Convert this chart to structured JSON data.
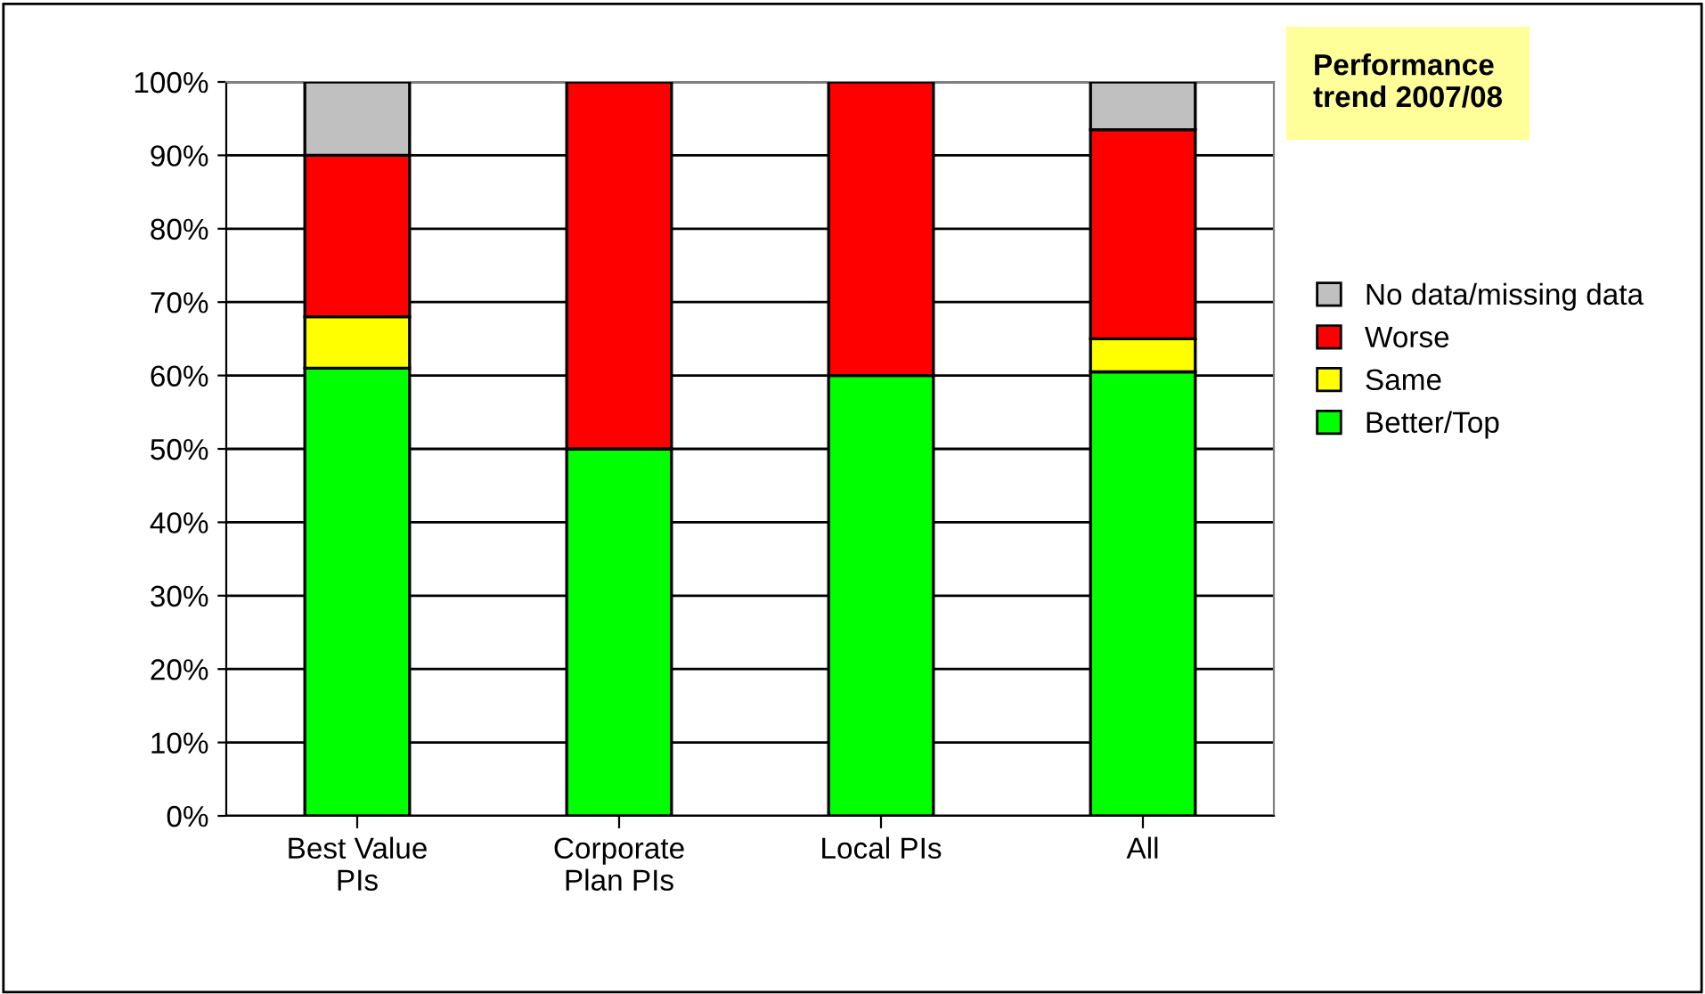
{
  "chart_data": {
    "type": "bar",
    "stacked": true,
    "categories": [
      "Best Value\nPIs",
      "Corporate\nPlan PIs",
      "Local PIs",
      "All"
    ],
    "series": [
      {
        "name": "Better/Top",
        "color": "#00ff00",
        "values": [
          61,
          50,
          60,
          60.5
        ]
      },
      {
        "name": "Same",
        "color": "#ffff00",
        "values": [
          7,
          null,
          null,
          4.5
        ]
      },
      {
        "name": "Worse",
        "color": "#ff0000",
        "values": [
          22,
          50,
          40,
          28.5
        ]
      },
      {
        "name": "No data/missing data",
        "color": "#c0c0c0",
        "values": [
          10,
          null,
          null,
          6.5
        ]
      }
    ],
    "ylim": [
      0,
      100
    ],
    "yticks": [
      {
        "value": 0,
        "label": "0%"
      },
      {
        "value": 10,
        "label": "10%"
      },
      {
        "value": 20,
        "label": "20%"
      },
      {
        "value": 30,
        "label": "30%"
      },
      {
        "value": 40,
        "label": "40%"
      },
      {
        "value": 50,
        "label": "50%"
      },
      {
        "value": 60,
        "label": "60%"
      },
      {
        "value": 70,
        "label": "70%"
      },
      {
        "value": 80,
        "label": "80%"
      },
      {
        "value": 90,
        "label": "90%"
      },
      {
        "value": 100,
        "label": "100%"
      }
    ],
    "grid": "y",
    "legend": "right",
    "annotations": [
      "Performance\ntrend 2007/08"
    ]
  }
}
